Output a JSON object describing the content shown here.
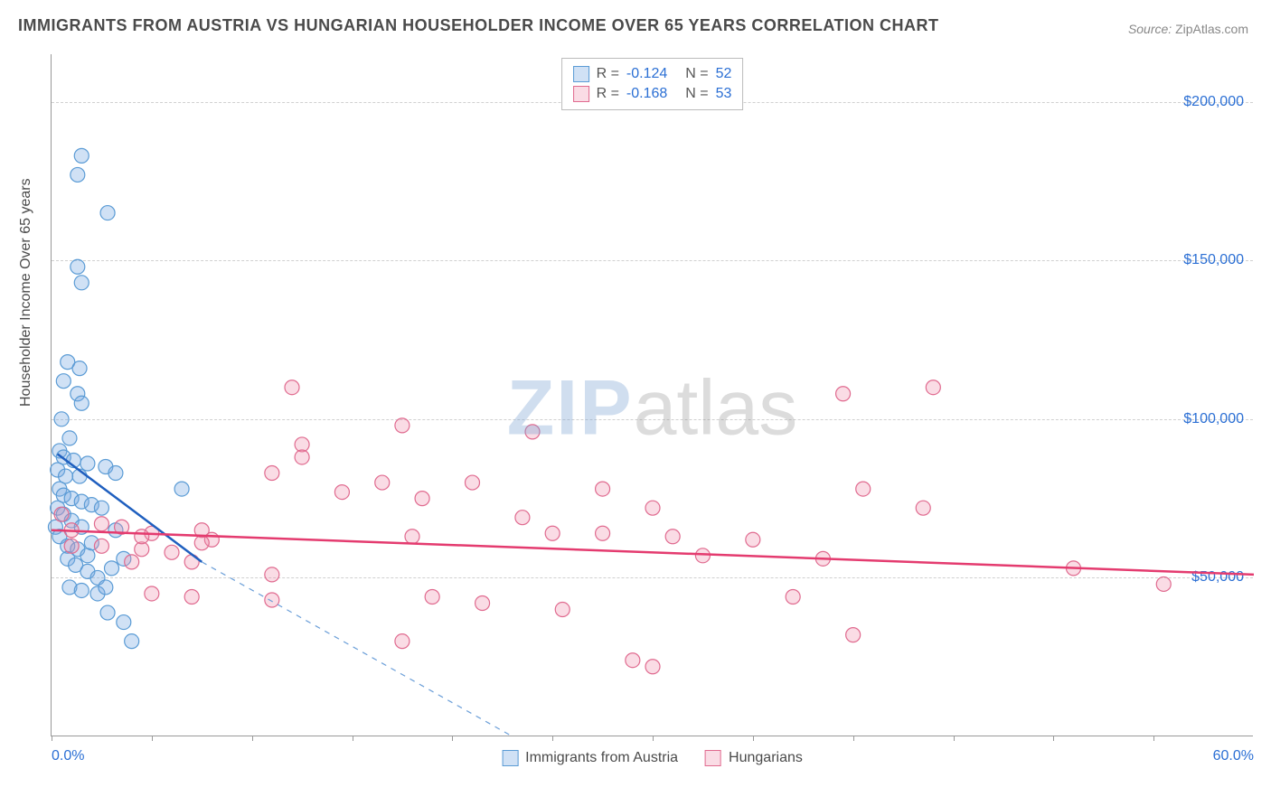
{
  "title": "IMMIGRANTS FROM AUSTRIA VS HUNGARIAN HOUSEHOLDER INCOME OVER 65 YEARS CORRELATION CHART",
  "source_label": "Source:",
  "source_value": "ZipAtlas.com",
  "y_axis_title": "Householder Income Over 65 years",
  "watermark_zip": "ZIP",
  "watermark_atlas": "atlas",
  "chart": {
    "type": "scatter",
    "xlim": [
      0,
      60
    ],
    "ylim": [
      0,
      215000
    ],
    "x_tick_positions": [
      0,
      5,
      10,
      15,
      20,
      25,
      30,
      35,
      40,
      45,
      50,
      55
    ],
    "x_axis_labels": [
      {
        "pos": 0,
        "text": "0.0%",
        "align": "left"
      },
      {
        "pos": 60,
        "text": "60.0%",
        "align": "right"
      }
    ],
    "y_gridlines": [
      50000,
      100000,
      150000,
      200000
    ],
    "y_axis_labels": [
      {
        "pos": 50000,
        "text": "$50,000"
      },
      {
        "pos": 100000,
        "text": "$100,000"
      },
      {
        "pos": 150000,
        "text": "$150,000"
      },
      {
        "pos": 200000,
        "text": "$200,000"
      }
    ],
    "background_color": "#ffffff",
    "grid_color": "#d0d0d0",
    "axis_color": "#999999",
    "label_color": "#2b6fd4",
    "marker_radius": 8,
    "marker_stroke_width": 1.2,
    "trend_line_width": 2.5
  },
  "series": [
    {
      "key": "austria",
      "label": "Immigrants from Austria",
      "fill": "rgba(120,170,225,0.35)",
      "stroke": "#5a9bd5",
      "trend_color": "#1f5fbf",
      "trend_dash_color": "#6a9ed8",
      "r_value": "-0.124",
      "n_value": "52",
      "points": [
        [
          1.5,
          183000
        ],
        [
          1.3,
          177000
        ],
        [
          2.8,
          165000
        ],
        [
          1.3,
          148000
        ],
        [
          1.5,
          143000
        ],
        [
          0.8,
          118000
        ],
        [
          1.4,
          116000
        ],
        [
          0.6,
          112000
        ],
        [
          1.3,
          108000
        ],
        [
          1.5,
          105000
        ],
        [
          0.5,
          100000
        ],
        [
          0.9,
          94000
        ],
        [
          0.4,
          90000
        ],
        [
          0.6,
          88000
        ],
        [
          1.1,
          87000
        ],
        [
          1.8,
          86000
        ],
        [
          0.3,
          84000
        ],
        [
          0.7,
          82000
        ],
        [
          1.4,
          82000
        ],
        [
          2.7,
          85000
        ],
        [
          3.2,
          83000
        ],
        [
          0.4,
          78000
        ],
        [
          0.6,
          76000
        ],
        [
          1.0,
          75000
        ],
        [
          1.5,
          74000
        ],
        [
          2.0,
          73000
        ],
        [
          2.5,
          72000
        ],
        [
          6.5,
          78000
        ],
        [
          0.3,
          72000
        ],
        [
          0.6,
          70000
        ],
        [
          1.0,
          68000
        ],
        [
          1.5,
          66000
        ],
        [
          0.2,
          66000
        ],
        [
          0.4,
          63000
        ],
        [
          0.8,
          60000
        ],
        [
          1.3,
          59000
        ],
        [
          1.8,
          57000
        ],
        [
          2.0,
          61000
        ],
        [
          3.2,
          65000
        ],
        [
          0.8,
          56000
        ],
        [
          1.2,
          54000
        ],
        [
          1.8,
          52000
        ],
        [
          2.3,
          50000
        ],
        [
          3.0,
          53000
        ],
        [
          3.6,
          56000
        ],
        [
          0.9,
          47000
        ],
        [
          1.5,
          46000
        ],
        [
          2.3,
          45000
        ],
        [
          2.7,
          47000
        ],
        [
          2.8,
          39000
        ],
        [
          3.6,
          36000
        ],
        [
          4.0,
          30000
        ]
      ],
      "trend_solid": {
        "x1": 0.3,
        "y1": 89000,
        "x2": 7.5,
        "y2": 55000
      },
      "trend_dashed": {
        "x1": 7.5,
        "y1": 55000,
        "x2": 23,
        "y2": 0
      }
    },
    {
      "key": "hungarians",
      "label": "Hungarians",
      "fill": "rgba(240,140,170,0.3)",
      "stroke": "#e06a8f",
      "trend_color": "#e43b6f",
      "r_value": "-0.168",
      "n_value": "53",
      "points": [
        [
          12.0,
          110000
        ],
        [
          39.5,
          108000
        ],
        [
          44.0,
          110000
        ],
        [
          17.5,
          98000
        ],
        [
          24.0,
          96000
        ],
        [
          12.5,
          92000
        ],
        [
          12.5,
          88000
        ],
        [
          11.0,
          83000
        ],
        [
          16.5,
          80000
        ],
        [
          21.0,
          80000
        ],
        [
          27.5,
          78000
        ],
        [
          40.5,
          78000
        ],
        [
          14.5,
          77000
        ],
        [
          18.5,
          75000
        ],
        [
          23.5,
          69000
        ],
        [
          30.0,
          72000
        ],
        [
          43.5,
          72000
        ],
        [
          0.5,
          70000
        ],
        [
          1.0,
          65000
        ],
        [
          2.5,
          67000
        ],
        [
          3.5,
          66000
        ],
        [
          5.0,
          64000
        ],
        [
          7.5,
          65000
        ],
        [
          8.0,
          62000
        ],
        [
          18.0,
          63000
        ],
        [
          25.0,
          64000
        ],
        [
          27.5,
          64000
        ],
        [
          31.0,
          63000
        ],
        [
          35.0,
          62000
        ],
        [
          1.0,
          60000
        ],
        [
          2.5,
          60000
        ],
        [
          4.5,
          59000
        ],
        [
          6.0,
          58000
        ],
        [
          7.5,
          61000
        ],
        [
          32.5,
          57000
        ],
        [
          38.5,
          56000
        ],
        [
          4.0,
          55000
        ],
        [
          7.0,
          55000
        ],
        [
          11.0,
          51000
        ],
        [
          51.0,
          53000
        ],
        [
          55.5,
          48000
        ],
        [
          5.0,
          45000
        ],
        [
          7.0,
          44000
        ],
        [
          11.0,
          43000
        ],
        [
          19.0,
          44000
        ],
        [
          21.5,
          42000
        ],
        [
          37.0,
          44000
        ],
        [
          25.5,
          40000
        ],
        [
          40.0,
          32000
        ],
        [
          17.5,
          30000
        ],
        [
          29.0,
          24000
        ],
        [
          30.0,
          22000
        ],
        [
          4.5,
          63000
        ]
      ],
      "trend_solid": {
        "x1": 0,
        "y1": 65000,
        "x2": 60,
        "y2": 51000
      }
    }
  ],
  "legend_top_label_r": "R =",
  "legend_top_label_n": "N ="
}
